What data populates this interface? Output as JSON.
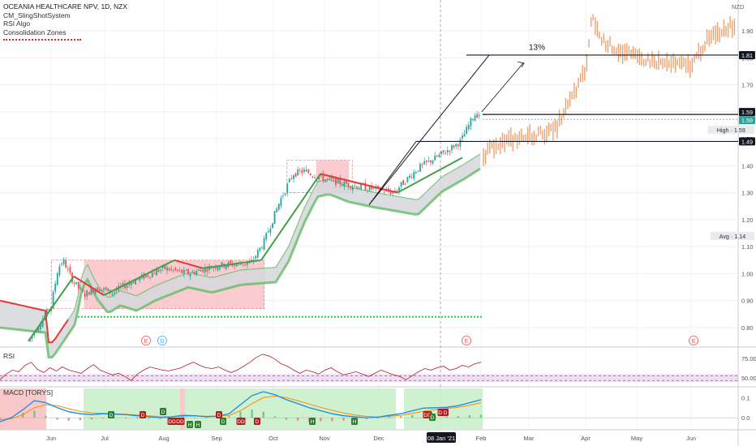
{
  "header": {
    "title": "OCEANIA HEALTHCARE NPV, 1D, NZX",
    "indicators": [
      "CM_SlingShotSystem",
      "RSI Algo",
      "Consolidation Zones"
    ],
    "currency": "NZD"
  },
  "chart_data": [
    {
      "type": "candlestick",
      "title": "OCEANIA HEALTHCARE NPV, 1D, NZX",
      "x_tick_labels": [
        "Jun",
        "Jul",
        "Aug",
        "Sep",
        "Oct",
        "Nov",
        "Dec",
        "Feb",
        "Mar",
        "Apr",
        "May",
        "Jun"
      ],
      "crosshair_date": "08 Jan '21",
      "y_tick_labels": [
        "0.80",
        "0.90",
        "1.00",
        "1.10",
        "1.20",
        "1.30",
        "1.40",
        "1.50",
        "1.60",
        "1.70",
        "1.80",
        "1.90"
      ],
      "ylim": [
        0.75,
        2.0
      ],
      "price_labels": [
        {
          "text": "1.81"
        },
        {
          "text": "1.59"
        },
        {
          "text": "1.59"
        },
        {
          "text": "High",
          "value": "1.59"
        },
        {
          "text": "1.49"
        },
        {
          "text": "Avg",
          "value": "1.14"
        }
      ],
      "price_path": [
        {
          "date": "May-22",
          "close": 0.75
        },
        {
          "date": "Jun-01",
          "close": 0.88
        },
        {
          "date": "Jun-05",
          "close": 1.02
        },
        {
          "date": "Jun-08",
          "close": 1.05
        },
        {
          "date": "Jun-13",
          "close": 0.98
        },
        {
          "date": "Jun-20",
          "close": 0.92
        },
        {
          "date": "Jun-27",
          "close": 0.95
        },
        {
          "date": "Jul-05",
          "close": 0.93
        },
        {
          "date": "Jul-15",
          "close": 0.97
        },
        {
          "date": "Aug-01",
          "close": 1.02
        },
        {
          "date": "Aug-15",
          "close": 1.0
        },
        {
          "date": "Sep-01",
          "close": 1.03
        },
        {
          "date": "Sep-20",
          "close": 1.04
        },
        {
          "date": "Sep-27",
          "close": 1.12
        },
        {
          "date": "Oct-05",
          "close": 1.27
        },
        {
          "date": "Oct-13",
          "close": 1.37
        },
        {
          "date": "Oct-20",
          "close": 1.38
        },
        {
          "date": "Nov-01",
          "close": 1.35
        },
        {
          "date": "Nov-15",
          "close": 1.33
        },
        {
          "date": "Dec-01",
          "close": 1.31
        },
        {
          "date": "Dec-10",
          "close": 1.3
        },
        {
          "date": "Dec-25",
          "close": 1.39
        },
        {
          "date": "Jan-08",
          "close": 1.44
        },
        {
          "date": "Jan-20",
          "close": 1.49
        },
        {
          "date": "Jan-28",
          "close": 1.59
        }
      ],
      "forecast_path": [
        {
          "date": "Feb-01",
          "close": 1.42
        },
        {
          "date": "Feb-10",
          "close": 1.48
        },
        {
          "date": "Mar-01",
          "close": 1.51
        },
        {
          "date": "Mar-15",
          "close": 1.53
        },
        {
          "date": "Apr-01",
          "close": 1.75
        },
        {
          "date": "Apr-05",
          "close": 1.96
        },
        {
          "date": "Apr-10",
          "close": 1.87
        },
        {
          "date": "Apr-20",
          "close": 1.83
        },
        {
          "date": "May-01",
          "close": 1.8
        },
        {
          "date": "May-15",
          "close": 1.78
        },
        {
          "date": "Jun-01",
          "close": 1.77
        },
        {
          "date": "Jun-10",
          "close": 1.86
        },
        {
          "date": "Jun-25",
          "close": 1.92
        }
      ],
      "horizontal_levels": [
        {
          "price": 1.81,
          "label": "1.81"
        },
        {
          "price": 1.59,
          "label": "1.59"
        },
        {
          "price": 1.49,
          "label": "1.49"
        }
      ],
      "annotation": {
        "text": "13%"
      },
      "consolidation_zones": [
        {
          "from": "Jun-20",
          "to": "Sep-27",
          "low": 0.87,
          "high": 1.05
        },
        {
          "from": "Oct-27",
          "to": "Nov-15",
          "low": 1.3,
          "high": 1.42
        }
      ],
      "support_level": 0.84,
      "earnings_markers": [
        "E",
        "D",
        "E",
        "E"
      ],
      "colors": {
        "up": "#26a69a",
        "down": "#ef5350",
        "forecast": "#f0a070",
        "uptrend": "#43a047",
        "downtrend": "#e53935",
        "band_upper": "#e53935",
        "band_lower": "#66bb6a",
        "zone": "#f8bbc0"
      }
    },
    {
      "type": "line",
      "title": "RSI",
      "y_tick_labels": [
        "75.00",
        "50.00"
      ],
      "ylim": [
        40,
        85
      ],
      "values": [
        48,
        55,
        60,
        58,
        66,
        70,
        61,
        57,
        63,
        59,
        64,
        60,
        58,
        56,
        62,
        67,
        60,
        57,
        54,
        56,
        52,
        47,
        55,
        60,
        64,
        62,
        60,
        59,
        61,
        63,
        67,
        70,
        66,
        63,
        62,
        64,
        60,
        57,
        60,
        65,
        70,
        76,
        80,
        78,
        74,
        68,
        65,
        60,
        56,
        60,
        58,
        55,
        60,
        63,
        58,
        54,
        56,
        58,
        55,
        52,
        56,
        60,
        57,
        54,
        52,
        48,
        53,
        58,
        62,
        60,
        63,
        65,
        60,
        62,
        66,
        64,
        68,
        70
      ],
      "overbought": 53,
      "oversold": 47,
      "colors": {
        "line": "#b71c1c",
        "band": "#e1bee7"
      }
    },
    {
      "type": "line",
      "title": "MACD [TORYS]",
      "y_tick_labels": [
        "0.1",
        "0.0"
      ],
      "ylim": [
        -0.06,
        0.15
      ],
      "macd": [
        -0.02,
        0.0,
        0.04,
        0.085,
        0.075,
        0.05,
        0.03,
        0.02,
        0.015,
        0.02,
        0.018,
        0.015,
        0.01,
        0.005,
        0.0,
        0.005,
        0.012,
        0.01,
        0.005,
        0.008,
        0.02,
        0.065,
        0.11,
        0.13,
        0.115,
        0.09,
        0.07,
        0.05,
        0.035,
        0.02,
        0.01,
        0.005,
        0.0,
        0.003,
        0.012,
        0.02,
        0.035,
        0.048,
        0.05,
        0.052,
        0.06,
        0.075,
        0.09
      ],
      "signal": [
        -0.01,
        -0.005,
        0.015,
        0.05,
        0.065,
        0.06,
        0.045,
        0.032,
        0.024,
        0.022,
        0.02,
        0.017,
        0.014,
        0.01,
        0.006,
        0.005,
        0.008,
        0.009,
        0.008,
        0.008,
        0.012,
        0.035,
        0.07,
        0.1,
        0.108,
        0.1,
        0.085,
        0.068,
        0.052,
        0.037,
        0.024,
        0.014,
        0.007,
        0.004,
        0.007,
        0.012,
        0.022,
        0.033,
        0.041,
        0.046,
        0.052,
        0.062,
        0.075
      ],
      "signals": [
        {
          "label": "D",
          "type": "bull"
        },
        {
          "label": "D",
          "type": "bear"
        },
        {
          "label": "D",
          "type": "bull"
        },
        {
          "label": "DD",
          "type": "bear"
        },
        {
          "label": "DD",
          "type": "bear"
        },
        {
          "label": "H",
          "type": "bull"
        },
        {
          "label": "H",
          "type": "bull"
        },
        {
          "label": "D",
          "type": "bear"
        },
        {
          "label": "D",
          "type": "bull"
        },
        {
          "label": "DD",
          "type": "bear"
        },
        {
          "label": "D",
          "type": "bear"
        },
        {
          "label": "H",
          "type": "bull"
        },
        {
          "label": "H",
          "type": "bull"
        },
        {
          "label": "DD",
          "type": "bear"
        },
        {
          "label": "DD",
          "type": "bear"
        },
        {
          "label": "D",
          "type": "bull"
        },
        {
          "label": "D",
          "type": "bear"
        }
      ],
      "colors": {
        "macd": "#1e88e5",
        "signal": "#fb8c00",
        "bull_zone": "#c8eec8",
        "bear_zone": "#f8c0c0"
      }
    }
  ]
}
